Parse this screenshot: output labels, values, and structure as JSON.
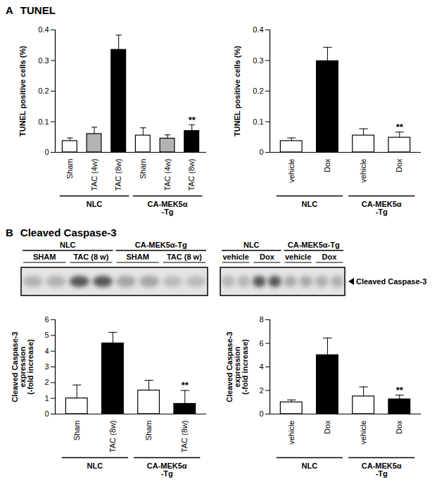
{
  "panels": [
    {
      "letter": "A",
      "title": "TUNEL"
    },
    {
      "letter": "B",
      "title": "Cleaved Caspase-3"
    }
  ],
  "blots": [
    {
      "groups": [
        {
          "name": "NLC",
          "conditions": [
            "SHAM",
            "TAC (8 w)"
          ]
        },
        {
          "name": "CA-MEK5α-Tg",
          "conditions": [
            "SHAM",
            "TAC (8 w)"
          ]
        }
      ]
    },
    {
      "groups": [
        {
          "name": "NLC",
          "conditions": [
            "vehicle",
            "Dox"
          ]
        },
        {
          "name": "CA-MEK5α-Tg",
          "conditions": [
            "vehicle",
            "Dox"
          ]
        }
      ],
      "band_label": "Cleaved Caspase-3"
    }
  ],
  "chart_data": [
    {
      "type": "bar",
      "categories": [
        "Sham",
        "TAC (4w)",
        "TAC (8w)",
        "Sham",
        "TAC (4w)",
        "TAC (8w)"
      ],
      "values": [
        0.037,
        0.06,
        0.335,
        0.055,
        0.045,
        0.07
      ],
      "errors": [
        0.01,
        0.022,
        0.048,
        0.025,
        0.012,
        0.02
      ],
      "colors": [
        "#ffffff",
        "#b3b3b3",
        "#000000",
        "#ffffff",
        "#b3b3b3",
        "#000000"
      ],
      "ylabel": "TUNEL positive cells (%)",
      "ylim": [
        0,
        0.4
      ],
      "yticks": [
        0,
        0.1,
        0.2,
        0.3,
        0.4
      ],
      "groups": [
        {
          "name": "NLC",
          "count": 3
        },
        {
          "name": "CA-MEK5α\n-Tg",
          "count": 3
        }
      ],
      "annotations": [
        {
          "index": 5,
          "text": "**"
        }
      ]
    },
    {
      "type": "bar",
      "categories": [
        "vehicle",
        "Dox",
        "vehicle",
        "Dox"
      ],
      "values": [
        0.037,
        0.298,
        0.055,
        0.048
      ],
      "errors": [
        0.01,
        0.045,
        0.022,
        0.018
      ],
      "colors": [
        "#ffffff",
        "#000000",
        "#ffffff",
        "#ffffff"
      ],
      "ylabel": "TUNEL positive cells (%)",
      "ylim": [
        0,
        0.4
      ],
      "yticks": [
        0,
        0.1,
        0.2,
        0.3,
        0.4
      ],
      "groups": [
        {
          "name": "NLC",
          "count": 2
        },
        {
          "name": "CA-MEK5α\n-Tg",
          "count": 2
        }
      ],
      "annotations": [
        {
          "index": 3,
          "text": "**"
        }
      ]
    },
    {
      "type": "bar",
      "categories": [
        "Sham",
        "TAC (8w)",
        "Sham",
        "TAC (8w)"
      ],
      "values": [
        1,
        4.5,
        1.5,
        0.65
      ],
      "errors": [
        0.85,
        0.7,
        0.65,
        0.85
      ],
      "colors": [
        "#ffffff",
        "#000000",
        "#ffffff",
        "#000000"
      ],
      "ylabel": "Cleaved Caspase-3\nexpression\n(-fold increase)",
      "ylim": [
        0,
        6
      ],
      "yticks": [
        0,
        1,
        2,
        3,
        4,
        5,
        6
      ],
      "groups": [
        {
          "name": "NLC",
          "count": 2
        },
        {
          "name": "CA-MEK5α\n-Tg",
          "count": 2
        }
      ],
      "annotations": [
        {
          "index": 3,
          "text": "**"
        }
      ]
    },
    {
      "type": "bar",
      "categories": [
        "vehicle",
        "Dox",
        "vehicle",
        "Dox"
      ],
      "values": [
        1,
        5,
        1.5,
        1.25
      ],
      "errors": [
        0.2,
        1.45,
        0.8,
        0.35
      ],
      "colors": [
        "#ffffff",
        "#000000",
        "#ffffff",
        "#000000"
      ],
      "ylabel": "Cleaved Caspase-3\nexpression\n(-fold increase)",
      "ylim": [
        0,
        8
      ],
      "yticks": [
        0,
        2,
        4,
        6,
        8
      ],
      "groups": [
        {
          "name": "NLC",
          "count": 2
        },
        {
          "name": "CA-MEK5α\n-Tg",
          "count": 2
        }
      ],
      "annotations": [
        {
          "index": 3,
          "text": "**"
        }
      ]
    }
  ]
}
